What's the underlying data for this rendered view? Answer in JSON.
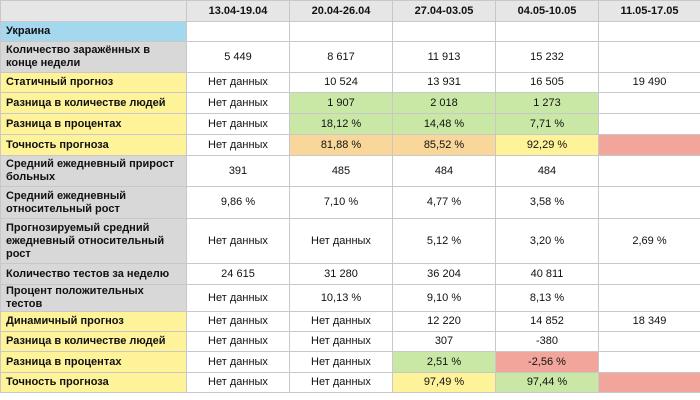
{
  "columns": [
    "",
    "13.04-19.04",
    "20.04-26.04",
    "27.04-03.05",
    "04.05-10.05",
    "11.05-17.05"
  ],
  "colors": {
    "gray": "#d8d8d8",
    "yellow": "#fff39a",
    "blue": "#a4d8ef",
    "green": "#c9e8a6",
    "orange": "#f9d79b",
    "red": "#f2a59a"
  },
  "rows": [
    {
      "label": "Украина",
      "bg": "blue",
      "h": 20,
      "cells": [
        "",
        "",
        "",
        "",
        ""
      ],
      "cellbg": [
        "",
        "",
        "",
        "",
        ""
      ]
    },
    {
      "label": "Количество заражённых в конце недели",
      "bg": "gray",
      "h": 31,
      "cells": [
        "5 449",
        "8 617",
        "11 913",
        "15 232",
        ""
      ],
      "cellbg": [
        "",
        "",
        "",
        "",
        ""
      ]
    },
    {
      "label": "Статичный прогноз",
      "bg": "yellow",
      "h": 20,
      "cells": [
        "Нет данных",
        "10 524",
        "13 931",
        "16 505",
        "19 490"
      ],
      "cellbg": [
        "",
        "",
        "",
        "",
        ""
      ]
    },
    {
      "label": "Разница в количестве людей",
      "bg": "yellow",
      "h": 21,
      "cells": [
        "Нет данных",
        "1 907",
        "2 018",
        "1 273",
        ""
      ],
      "cellbg": [
        "",
        "green",
        "green",
        "green",
        ""
      ]
    },
    {
      "label": "Разница в процентах",
      "bg": "yellow",
      "h": 21,
      "cells": [
        "Нет данных",
        "18,12 %",
        "14,48 %",
        "7,71 %",
        ""
      ],
      "cellbg": [
        "",
        "green",
        "green",
        "green",
        ""
      ]
    },
    {
      "label": "Точность прогноза",
      "bg": "yellow",
      "h": 21,
      "cells": [
        "Нет данных",
        "81,88 %",
        "85,52 %",
        "92,29 %",
        ""
      ],
      "cellbg": [
        "",
        "orange",
        "orange",
        "yellow",
        "red"
      ]
    },
    {
      "label": "Средний ежедневный прирост больных",
      "bg": "gray",
      "h": 31,
      "cells": [
        "391",
        "485",
        "484",
        "484",
        ""
      ],
      "cellbg": [
        "",
        "",
        "",
        "",
        ""
      ]
    },
    {
      "label": "Средний ежедневный относительный рост",
      "bg": "gray",
      "h": 32,
      "cells": [
        "9,86 %",
        "7,10 %",
        "4,77 %",
        "3,58 %",
        ""
      ],
      "cellbg": [
        "",
        "",
        "",
        "",
        ""
      ]
    },
    {
      "label": "Прогнозируемый средний ежедневный  относительный рост",
      "bg": "gray",
      "h": 45,
      "cells": [
        "Нет данных",
        "Нет данных",
        "5,12 %",
        "3,20 %",
        "2,69 %"
      ],
      "cellbg": [
        "",
        "",
        "",
        "",
        ""
      ]
    },
    {
      "label": "Количество тестов за неделю",
      "bg": "gray",
      "h": 21,
      "cells": [
        "24 615",
        "31 280",
        "36 204",
        "40 811",
        ""
      ],
      "cellbg": [
        "",
        "",
        "",
        "",
        ""
      ]
    },
    {
      "label": "Процент положительных тестов",
      "bg": "gray",
      "h": 21,
      "cells": [
        "Нет данных",
        "10,13 %",
        "9,10 %",
        "8,13 %",
        ""
      ],
      "cellbg": [
        "",
        "",
        "",
        "",
        ""
      ]
    },
    {
      "label": "Динамичный прогноз",
      "bg": "yellow",
      "h": 20,
      "cells": [
        "Нет данных",
        "Нет данных",
        "12 220",
        "14 852",
        "18 349"
      ],
      "cellbg": [
        "",
        "",
        "",
        "",
        ""
      ]
    },
    {
      "label": "Разница в количестве людей",
      "bg": "yellow",
      "h": 20,
      "cells": [
        "Нет данных",
        "Нет данных",
        "307",
        "-380",
        ""
      ],
      "cellbg": [
        "",
        "",
        "",
        "",
        ""
      ]
    },
    {
      "label": "Разница в процентах",
      "bg": "yellow",
      "h": 21,
      "cells": [
        "Нет данных",
        "Нет данных",
        "2,51 %",
        "-2,56 %",
        ""
      ],
      "cellbg": [
        "",
        "",
        "green",
        "red",
        ""
      ]
    },
    {
      "label": "Точность прогноза",
      "bg": "yellow",
      "h": 20,
      "cells": [
        "Нет данных",
        "Нет данных",
        "97,49 %",
        "97,44 %",
        ""
      ],
      "cellbg": [
        "",
        "",
        "yellow",
        "green",
        "red"
      ]
    }
  ]
}
